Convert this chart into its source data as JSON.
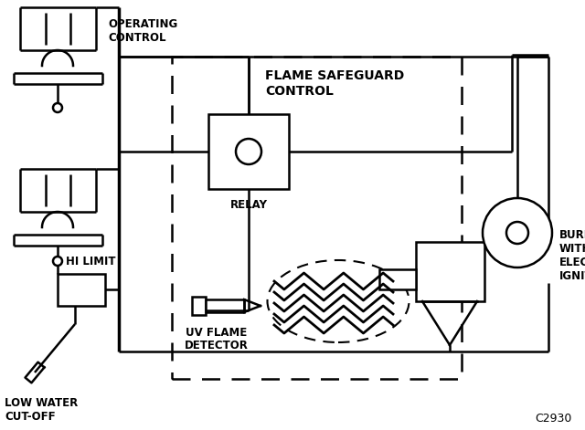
{
  "bg_color": "#ffffff",
  "line_color": "#000000",
  "figsize": [
    6.4,
    4.71
  ],
  "dpi": 100,
  "labels": {
    "operating_control": "OPERATING\nCONTROL",
    "flame_safeguard_1": "FLAME SAFEGUARD",
    "flame_safeguard_2": "CONTROL",
    "relay": "RELAY",
    "hi_limit": "HI LIMIT",
    "uv_flame_1": "UV FLAME",
    "uv_flame_2": "DETECTOR",
    "burner": "BURNER\nWITH\nELECTRIC\nIGNITION",
    "low_water_1": "LOW WATER",
    "low_water_2": "CUT-OFF",
    "code": "C2930"
  }
}
